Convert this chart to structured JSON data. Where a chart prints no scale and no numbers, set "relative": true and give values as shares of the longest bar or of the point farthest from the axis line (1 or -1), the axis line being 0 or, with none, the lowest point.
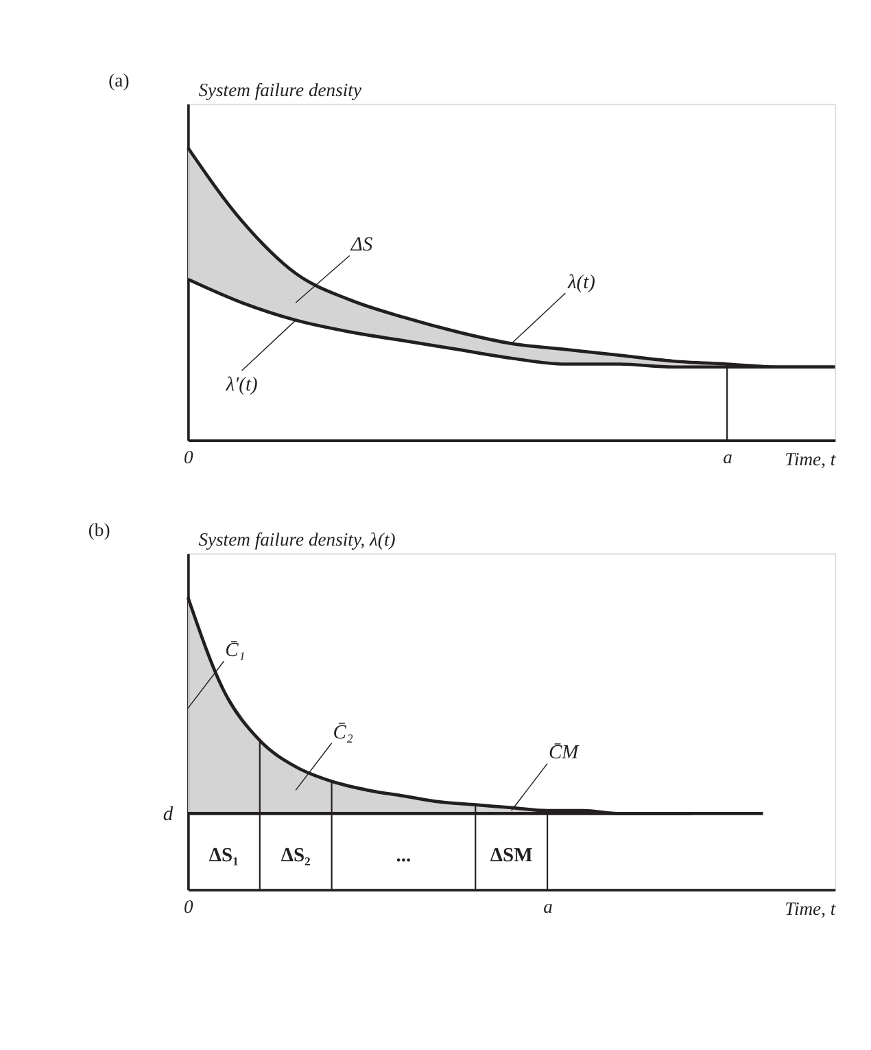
{
  "chart_data": [
    {
      "type": "line",
      "title": "(a)",
      "ylabel": "System failure density",
      "xlabel": "Time, t",
      "relative": true,
      "categories": [
        "0",
        null,
        null,
        null,
        null,
        null,
        null,
        null,
        null,
        null,
        "a",
        null,
        null
      ],
      "marker": "none",
      "line_style": "solid",
      "series": [
        {
          "name": "λ(t)",
          "color": "#231f20",
          "values": [
            1.0,
            0.75,
            0.57,
            0.48,
            0.42,
            0.37,
            0.33,
            0.31,
            0.29,
            0.27,
            0.26,
            0.25,
            0.25
          ],
          "lower": [
            0.55,
            0.47,
            0.41,
            0.37,
            0.34,
            0.31,
            0.28,
            0.26,
            0.26,
            0.25,
            0.25,
            0.25,
            0.25
          ],
          "upper": [
            1.0,
            0.75,
            0.57,
            0.48,
            0.42,
            0.37,
            0.33,
            0.31,
            0.29,
            0.27,
            0.26,
            0.25,
            0.25
          ]
        },
        {
          "name": "λ′(t)",
          "color": "#231f20",
          "values": [
            0.55,
            0.47,
            0.41,
            0.37,
            0.34,
            0.31,
            0.28,
            0.26,
            0.26,
            0.25,
            0.25,
            0.25,
            0.25
          ]
        },
        {
          "type": "bar",
          "color": "#231f20",
          "values": [
            null,
            null,
            null,
            null,
            null,
            null,
            null,
            null,
            null,
            null,
            0.26,
            null,
            null
          ]
        }
      ],
      "annotations": [
        {
          "text": "ΔS",
          "y": 0.47
        }
      ]
    },
    {
      "type": "line",
      "title": "(b)",
      "ylabel": "System failure density,  λ(t)",
      "xlabel": "Time, t",
      "relative": true,
      "categories": [
        "0",
        null,
        null,
        null,
        null,
        null,
        null,
        null,
        null,
        null,
        "a",
        null,
        null,
        null,
        null,
        null,
        null,
        null,
        null
      ],
      "marker": "none",
      "line_style": "solid",
      "series": [
        {
          "color": "#231f20",
          "values": [
            1.0,
            0.68,
            0.51,
            0.42,
            0.37,
            0.34,
            0.32,
            0.3,
            0.29,
            0.28,
            0.27,
            0.27,
            0.26,
            0.26,
            0.26,
            null,
            null,
            null,
            null
          ],
          "lower": [
            0.26,
            0.26,
            0.26,
            0.26,
            0.26,
            0.26,
            0.26,
            0.26,
            0.26,
            0.26,
            0.26,
            0.26,
            0.26,
            0.26,
            0.26,
            null,
            null,
            null,
            null
          ],
          "upper": [
            1.0,
            0.68,
            0.51,
            0.42,
            0.37,
            0.34,
            0.32,
            0.3,
            0.29,
            0.28,
            0.27,
            0.27,
            0.26,
            0.26,
            0.26,
            null,
            null,
            null,
            null
          ]
        },
        {
          "name": "d",
          "color": "#231f20",
          "values": [
            0.26,
            0.26,
            0.26,
            0.26,
            0.26,
            0.26,
            0.26,
            0.26,
            0.26,
            0.26,
            0.26,
            0.26,
            0.26,
            0.26,
            0.26,
            0.26,
            0.26,
            null,
            null
          ]
        },
        {
          "type": "bar",
          "color": "#231f20",
          "values": [
            null,
            null,
            0.51,
            null,
            0.37,
            null,
            null,
            null,
            0.29,
            null,
            0.27,
            null,
            null,
            null,
            null,
            null,
            null,
            null,
            null
          ]
        }
      ],
      "annotations": [
        "ΔS₁",
        "ΔS₂",
        "...",
        "ΔSM",
        {
          "text": "C̄₁",
          "y": 0.62
        },
        {
          "text": "C̄₂",
          "y": 0.34
        },
        {
          "text": "C̄M",
          "y": 0.27
        }
      ]
    }
  ]
}
